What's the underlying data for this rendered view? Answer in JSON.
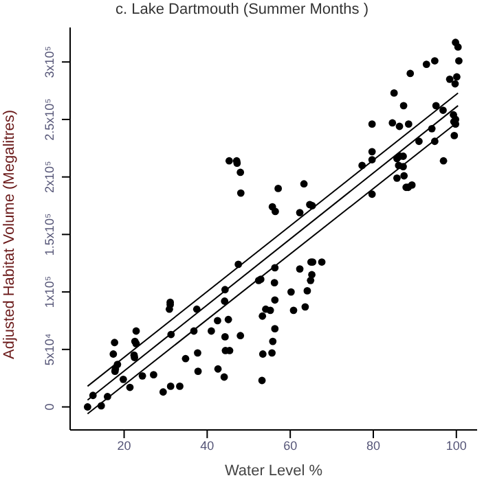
{
  "chart_data": {
    "type": "scatter",
    "title": "c.   Lake Dartmouth (Summer Months )",
    "xlabel": "Water Level %",
    "ylabel": "Adjusted Habitat Volume (Megalitres)",
    "xlim": [
      7,
      105
    ],
    "ylim": [
      -20000,
      330000
    ],
    "xticks": [
      20,
      40,
      60,
      80,
      100
    ],
    "yticks": [
      0,
      {
        "value": 50000,
        "label": "5x10⁴"
      },
      {
        "value": 100000,
        "label": "1x10⁵"
      },
      {
        "value": 150000,
        "label": "1.5x10⁵"
      },
      {
        "value": 200000,
        "label": "2x10⁵"
      },
      {
        "value": 250000,
        "label": "2.5x10⁵"
      },
      {
        "value": 300000,
        "label": "3x10⁵"
      }
    ],
    "grid": false,
    "legend": false,
    "marker": "circle",
    "series": [
      {
        "color": "#000000",
        "x": [
          11.2,
          12.5,
          14.5,
          16.0,
          17.7,
          17.4,
          17.8,
          17.9,
          18.4,
          19.8,
          21.4,
          22.4,
          22.5,
          22.6,
          22.9,
          22.9,
          24.4,
          27.1,
          29.4,
          31.2,
          33.4,
          30.9,
          31.1,
          31.1,
          31.3,
          34.8,
          36.8,
          37.5,
          37.7,
          37.8,
          41.0,
          42.5,
          42.6,
          44.1,
          44.2,
          44.3,
          44.3,
          44.4,
          45.4,
          45.1,
          48.0,
          47.5,
          53.2,
          53.3,
          53.4,
          52.4,
          52.9,
          54.1,
          55.2,
          55.6,
          55.8,
          56.3,
          56.3,
          56.2,
          56.3,
          60.2,
          60.8,
          62.3,
          63.6,
          64.1,
          64.9,
          65.2,
          65.0,
          65.4,
          67.6,
          45.3,
          47.1,
          47.2,
          48.0,
          48.1,
          55.7,
          56.4,
          57.1,
          63.3,
          62.3,
          64.7,
          65.3,
          77.3,
          79.7,
          79.7,
          79.7,
          79.7,
          84.6,
          85.0,
          85.7,
          86.4,
          87.2,
          85.7,
          86.1,
          87.2,
          87.4,
          86.3,
          87.3,
          87.9,
          88.4,
          89.3,
          88.5,
          88.9,
          91.0,
          92.8,
          94.1,
          94.8,
          94.8,
          95.1,
          96.8,
          96.9,
          98.4,
          99.3,
          99.8,
          99.4,
          99.8,
          99.5,
          99.7,
          100.1,
          99.8,
          100.4,
          100.6
        ],
        "values": [
          0,
          10000,
          1000,
          9000,
          56000,
          46000,
          31000,
          33000,
          37000,
          24000,
          17000,
          45000,
          43000,
          57000,
          55000,
          66000,
          27000,
          28000,
          13000,
          18000,
          18000,
          85000,
          89000,
          91000,
          63000,
          42000,
          66000,
          85000,
          47000,
          31000,
          66000,
          75000,
          33000,
          26000,
          92000,
          102000,
          61000,
          49000,
          49000,
          76000,
          62000,
          124000,
          23000,
          79000,
          46000,
          110000,
          111000,
          85000,
          84000,
          47000,
          57000,
          68000,
          93000,
          108000,
          121000,
          100000,
          84000,
          120000,
          87000,
          101000,
          110000,
          115000,
          126000,
          126000,
          126000,
          214000,
          214000,
          212000,
          204000,
          186000,
          174000,
          170000,
          190000,
          194000,
          169000,
          176000,
          175000,
          210000,
          246000,
          222000,
          215000,
          185000,
          247000,
          273000,
          216000,
          218000,
          218000,
          199000,
          210000,
          209000,
          201000,
          244000,
          262000,
          191000,
          191000,
          193000,
          246000,
          290000,
          231000,
          298000,
          242000,
          231000,
          301000,
          262000,
          258000,
          214000,
          285000,
          254000,
          250000,
          248000,
          246000,
          236000,
          281000,
          287000,
          317000,
          313000,
          301000
        ]
      },
      {
        "type": "line",
        "marker": "none",
        "color": "#000000",
        "x": [
          11.2,
          100.4
        ],
        "values": [
          18000,
          273000
        ]
      },
      {
        "type": "line",
        "marker": "none",
        "color": "#000000",
        "x": [
          11.2,
          100.4
        ],
        "values": [
          6000,
          262000
        ]
      },
      {
        "type": "line",
        "marker": "none",
        "color": "#000000",
        "x": [
          11.2,
          100.4
        ],
        "values": [
          -6000,
          248000
        ]
      }
    ]
  }
}
